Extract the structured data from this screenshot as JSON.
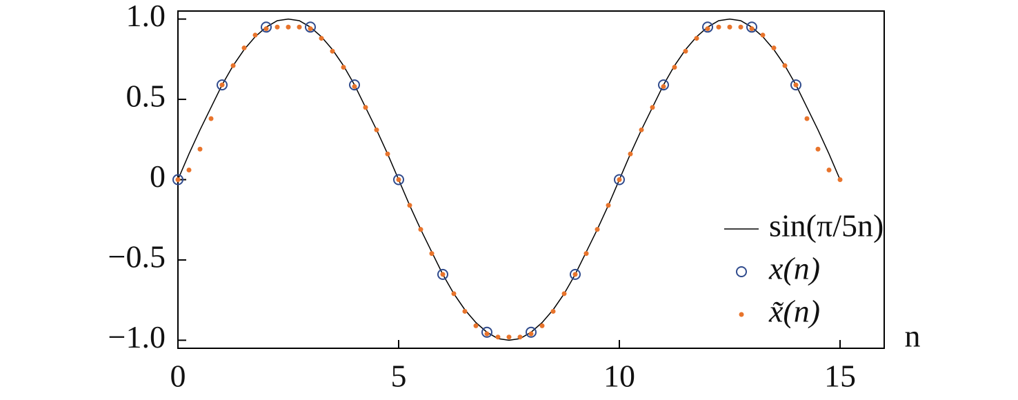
{
  "chart_data": {
    "type": "line",
    "x_label": "n",
    "xlim": [
      0,
      16
    ],
    "xticks": [
      0,
      5,
      10,
      15
    ],
    "ylim": [
      -1.05,
      1.05
    ],
    "yticks": [
      {
        "value": 1,
        "label": "1.0"
      },
      {
        "value": 0.5,
        "label": "0.5"
      },
      0,
      {
        "value": -0.5,
        "label": "−0.5"
      },
      {
        "value": -1,
        "label": "−1.0"
      }
    ],
    "legend": "lower right",
    "series": [
      {
        "name": "sin(π/5n)",
        "color": "#000000",
        "style": "line",
        "x": [
          0,
          0.25,
          0.5,
          0.75,
          1,
          1.25,
          1.5,
          1.75,
          2,
          2.25,
          2.5,
          2.75,
          3,
          3.25,
          3.5,
          3.75,
          4,
          4.25,
          4.5,
          4.75,
          5,
          5.25,
          5.5,
          5.75,
          6,
          6.25,
          6.5,
          6.75,
          7,
          7.25,
          7.5,
          7.75,
          8,
          8.25,
          8.5,
          8.75,
          9,
          9.25,
          9.5,
          9.75,
          10,
          10.25,
          10.5,
          10.75,
          11,
          11.25,
          11.5,
          11.75,
          12,
          12.25,
          12.5,
          12.75,
          13,
          13.25,
          13.5,
          13.75,
          14,
          14.25,
          14.5,
          14.75,
          15
        ],
        "values": [
          0,
          0.16,
          0.31,
          0.45,
          0.59,
          0.71,
          0.81,
          0.89,
          0.95,
          0.99,
          1,
          0.99,
          0.95,
          0.89,
          0.81,
          0.71,
          0.59,
          0.45,
          0.31,
          0.16,
          0,
          -0.16,
          -0.31,
          -0.45,
          -0.59,
          -0.71,
          -0.81,
          -0.89,
          -0.95,
          -0.99,
          -1,
          -0.99,
          -0.95,
          -0.89,
          -0.81,
          -0.71,
          -0.59,
          -0.45,
          -0.31,
          -0.16,
          0,
          0.16,
          0.31,
          0.45,
          0.59,
          0.71,
          0.81,
          0.89,
          0.95,
          0.99,
          1,
          0.99,
          0.95,
          0.89,
          0.81,
          0.71,
          0.59,
          0.45,
          0.31,
          0.16,
          0
        ]
      },
      {
        "name": "x(n)",
        "color": "#2f4a8c",
        "style": "circle",
        "x": [
          0,
          1,
          2,
          3,
          4,
          5,
          6,
          7,
          8,
          9,
          10,
          11,
          12,
          13,
          14
        ],
        "values": [
          0,
          0.59,
          0.95,
          0.95,
          0.59,
          0,
          -0.59,
          -0.95,
          -0.95,
          -0.59,
          0,
          0.59,
          0.95,
          0.95,
          0.59
        ]
      },
      {
        "name": "x̃(n)",
        "color": "#e8742c",
        "style": "dot",
        "x": [
          0,
          0.25,
          0.5,
          0.75,
          1,
          1.25,
          1.5,
          1.75,
          2,
          2.25,
          2.5,
          2.75,
          3,
          3.25,
          3.5,
          3.75,
          4,
          4.25,
          4.5,
          4.75,
          5,
          5.25,
          5.5,
          5.75,
          6,
          6.25,
          6.5,
          6.75,
          7,
          7.25,
          7.5,
          7.75,
          8,
          8.25,
          8.5,
          8.75,
          9,
          9.25,
          9.5,
          9.75,
          10,
          10.25,
          10.5,
          10.75,
          11,
          11.25,
          11.5,
          11.75,
          12,
          12.25,
          12.5,
          12.75,
          13,
          13.25,
          13.5,
          13.75,
          14,
          14.25,
          14.5,
          14.75,
          15
        ],
        "values": [
          0,
          0.06,
          0.19,
          0.38,
          0.59,
          0.71,
          0.82,
          0.9,
          0.94,
          0.95,
          0.95,
          0.95,
          0.94,
          0.88,
          0.8,
          0.7,
          0.58,
          0.45,
          0.31,
          0.16,
          0,
          -0.16,
          -0.31,
          -0.46,
          -0.59,
          -0.71,
          -0.82,
          -0.91,
          -0.96,
          -0.98,
          -0.98,
          -0.98,
          -0.96,
          -0.91,
          -0.82,
          -0.71,
          -0.59,
          -0.46,
          -0.31,
          -0.16,
          0,
          0.16,
          0.31,
          0.45,
          0.58,
          0.7,
          0.8,
          0.88,
          0.94,
          0.95,
          0.95,
          0.95,
          0.94,
          0.9,
          0.82,
          0.71,
          0.59,
          0.38,
          0.19,
          0.06,
          0
        ]
      }
    ]
  }
}
